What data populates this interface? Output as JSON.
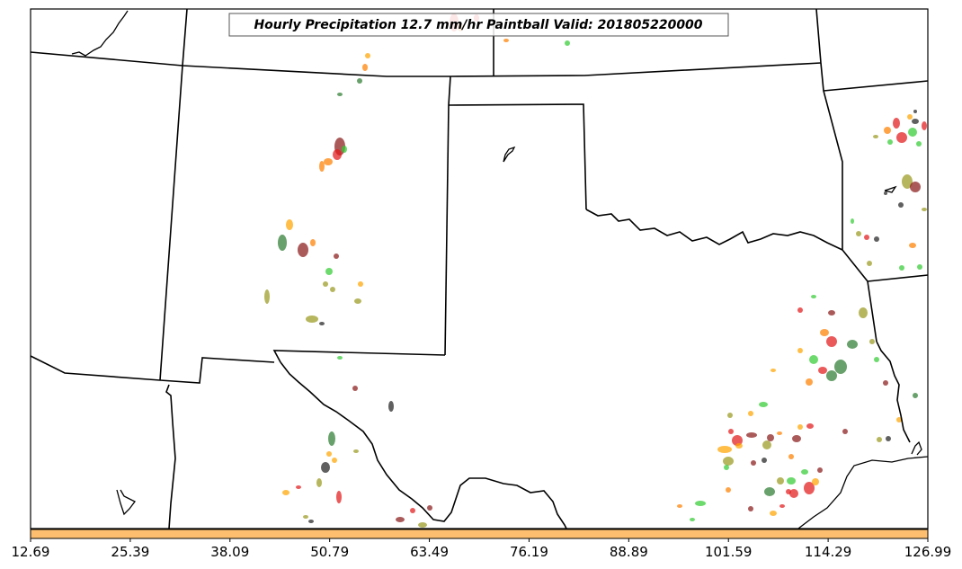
{
  "title": "Hourly Precipitation 12.7 mm/hr Paintball Valid: 201805220000",
  "colorbar": {
    "color": "#fdbf6f",
    "ticks": [
      "12.69",
      "25.39",
      "38.09",
      "50.79",
      "63.49",
      "76.19",
      "88.89",
      "101.59",
      "114.29",
      "126.99"
    ]
  },
  "paintball_colors": [
    "#e31a1c",
    "#ff7f00",
    "#33cc33",
    "#2e7d32",
    "#8b1a1a",
    "#9a9a20",
    "#222222",
    "#ffa500"
  ]
}
